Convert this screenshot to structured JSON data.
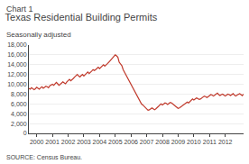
{
  "chart_data": {
    "type": "line",
    "title": "Texas Residential Building Permits",
    "subtitle": "Seasonally adjusted",
    "annotations": [
      "Chart 1",
      "SOURCE: Census Bureau."
    ],
    "color": "#c0392b",
    "grid": true,
    "ylim": [
      0,
      18000
    ],
    "yticks": [
      0,
      {
        "value": 2000,
        "label": "2,000"
      },
      {
        "value": 4000,
        "label": "4,000"
      },
      {
        "value": 6000,
        "label": "6,000"
      },
      {
        "value": 8000,
        "label": "8,000"
      },
      {
        "value": 10000,
        "label": "10,000"
      },
      {
        "value": 12000,
        "label": "12,000"
      },
      {
        "value": 14000,
        "label": "14,000"
      },
      {
        "value": 16000,
        "label": "16,000"
      },
      {
        "value": 18000,
        "label": "18,000"
      }
    ],
    "categories": [
      null,
      null,
      null,
      null,
      null,
      null,
      "2000",
      null,
      null,
      null,
      null,
      null,
      null,
      null,
      null,
      null,
      null,
      null,
      "2001",
      null,
      null,
      null,
      null,
      null,
      null,
      null,
      null,
      null,
      null,
      null,
      "2002",
      null,
      null,
      null,
      null,
      null,
      null,
      null,
      null,
      null,
      null,
      null,
      "2003",
      null,
      null,
      null,
      null,
      null,
      null,
      null,
      null,
      null,
      null,
      null,
      "2004",
      null,
      null,
      null,
      null,
      null,
      null,
      null,
      null,
      null,
      null,
      null,
      "2005",
      null,
      null,
      null,
      null,
      null,
      null,
      null,
      null,
      null,
      null,
      null,
      "2006",
      null,
      null,
      null,
      null,
      null,
      null,
      null,
      null,
      null,
      null,
      null,
      "2007",
      null,
      null,
      null,
      null,
      null,
      null,
      null,
      null,
      null,
      null,
      null,
      "2008",
      null,
      null,
      null,
      null,
      null,
      null,
      null,
      null,
      null,
      null,
      null,
      "2009",
      null,
      null,
      null,
      null,
      null,
      null,
      null,
      null,
      null,
      null,
      null,
      "2010",
      null,
      null,
      null,
      null,
      null,
      null,
      null,
      null,
      null,
      null,
      null,
      "2011",
      null,
      null,
      null,
      null,
      null,
      null,
      null,
      null,
      null,
      null,
      null,
      "2012",
      null,
      null,
      null,
      null,
      null,
      null,
      null,
      null,
      null,
      null,
      null,
      null,
      null,
      null
    ],
    "values": [
      9200,
      9000,
      9300,
      9100,
      8900,
      9100,
      9400,
      9200,
      9000,
      9300,
      9500,
      9200,
      9400,
      9600,
      9500,
      9300,
      9700,
      9900,
      10000,
      9800,
      10200,
      10400,
      10100,
      9800,
      10000,
      10200,
      10500,
      10300,
      10100,
      10500,
      10800,
      11000,
      10700,
      10900,
      11200,
      11500,
      11800,
      12000,
      11700,
      11500,
      11800,
      12000,
      11700,
      12000,
      12300,
      12500,
      12200,
      12400,
      12700,
      13000,
      12800,
      13000,
      13300,
      13500,
      13200,
      13500,
      13800,
      14000,
      13700,
      13900,
      14200,
      14500,
      14800,
      15000,
      15300,
      15700,
      16000,
      15800,
      15500,
      14500,
      14200,
      13800,
      13000,
      12500,
      12000,
      11500,
      11000,
      10500,
      10000,
      9500,
      9000,
      8500,
      8000,
      7500,
      7000,
      6500,
      6000,
      5800,
      5500,
      5200,
      4900,
      4700,
      4800,
      5000,
      5200,
      5000,
      4800,
      5000,
      5200,
      5500,
      5800,
      6000,
      5800,
      6000,
      6200,
      6100,
      5900,
      6100,
      6300,
      6200,
      6000,
      5800,
      5500,
      5300,
      5100,
      5200,
      5400,
      5600,
      5800,
      6000,
      6200,
      6400,
      6200,
      6500,
      6800,
      7000,
      6800,
      7000,
      7200,
      7100,
      6900,
      7000,
      7200,
      7400,
      7600,
      7500,
      7300,
      7500,
      7700,
      7900,
      7800,
      7600,
      7800,
      8000,
      8200,
      7900,
      7700,
      7900,
      8000,
      7800,
      7600,
      7800,
      8000,
      7900,
      7700,
      7900,
      8100,
      7800,
      7600,
      7800,
      8000,
      8100,
      7900,
      7700,
      8000
    ]
  }
}
